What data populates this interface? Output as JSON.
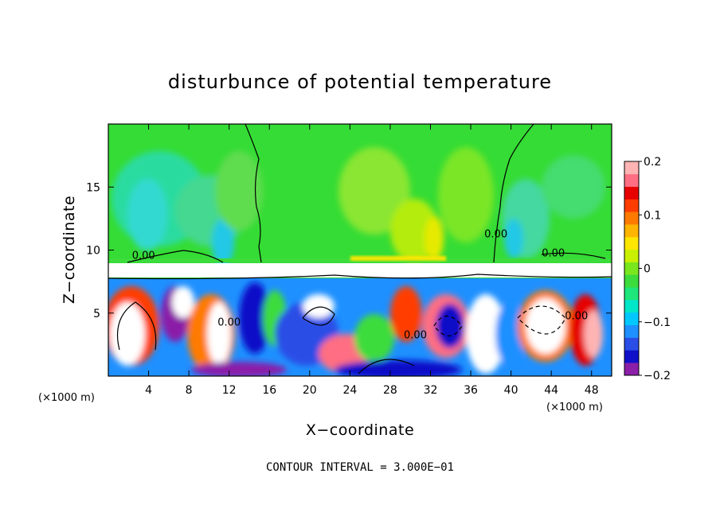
{
  "chart_data": {
    "type": "heatmap",
    "title": "disturbunce of potential temperature",
    "xlabel": "X−coordinate",
    "ylabel": "Z−coordinate",
    "x_unit_left": "(×1000 m)",
    "x_unit_right": "(×1000 m)",
    "xlim": [
      0,
      50
    ],
    "ylim": [
      0,
      20
    ],
    "x_ticks": [
      4,
      8,
      12,
      16,
      20,
      24,
      28,
      32,
      36,
      40,
      44,
      48
    ],
    "y_ticks": [
      5,
      10,
      15
    ],
    "colorbar": {
      "ticks": [
        "0.2",
        "0.1",
        "0",
        "−0.1",
        "−0.2"
      ],
      "tick_values": [
        0.2,
        0.1,
        0,
        -0.1,
        -0.2
      ],
      "range": [
        -0.2,
        0.2
      ],
      "colors": [
        "#8b1fa8",
        "#1010c8",
        "#2a4ee6",
        "#1e90ff",
        "#00c8ff",
        "#00e6c8",
        "#1ee67a",
        "#3cdc3c",
        "#7ae61e",
        "#c8f000",
        "#ffe600",
        "#ffb400",
        "#ff7a00",
        "#ff3c00",
        "#e60000",
        "#ff6e82",
        "#ffb4b4"
      ]
    },
    "contour_labels": [
      {
        "text": "0.00",
        "x": 3.5,
        "z": 9.3
      },
      {
        "text": "0.00",
        "x": 38.5,
        "z": 11.0
      },
      {
        "text": "0.00",
        "x": 44.2,
        "z": 9.5
      },
      {
        "text": "0.00",
        "x": 12.0,
        "z": 4.0
      },
      {
        "text": "0.00",
        "x": 30.5,
        "z": 3.0
      },
      {
        "text": "0.00",
        "x": 46.5,
        "z": 4.5
      }
    ],
    "contour_interval": "CONTOUR INTERVAL = 3.000E−01",
    "grid": false
  }
}
